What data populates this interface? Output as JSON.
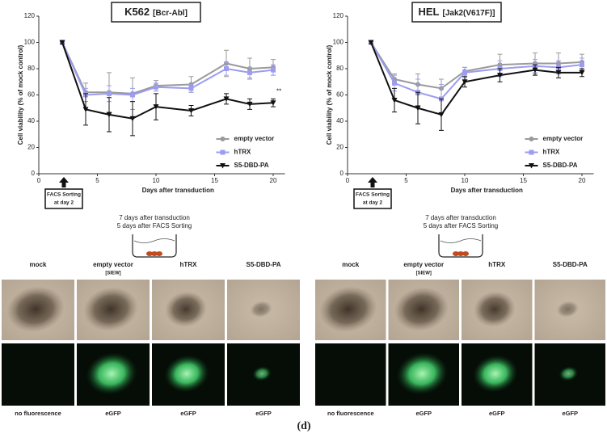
{
  "chart_data": [
    {
      "type": "line",
      "title": "K562",
      "subtitle": "[Bcr-Abl]",
      "x_label": "Days after transduction",
      "y_label": "Cell viability (% of mock control)",
      "x": [
        2,
        4,
        6,
        8,
        10,
        13,
        16,
        18,
        20
      ],
      "xlim": [
        0,
        21
      ],
      "xticks": [
        0,
        5,
        10,
        15,
        20
      ],
      "ylim": [
        0,
        120
      ],
      "yticks": [
        0,
        20,
        40,
        60,
        80,
        100,
        120
      ],
      "legend": "right",
      "annotations": [
        "FACS Sorting",
        "at day 2"
      ],
      "significance": "**",
      "series": [
        {
          "name": "empty vector",
          "color": "#9a9a9a",
          "marker": "circle",
          "values": [
            100,
            62,
            62,
            61,
            67,
            68,
            84,
            80,
            81
          ],
          "errors": [
            1,
            7,
            15,
            12,
            4,
            6,
            10,
            8,
            6
          ]
        },
        {
          "name": "hTRX",
          "color": "#9c9cf0",
          "marker": "square",
          "values": [
            100,
            60,
            61,
            60,
            66,
            65,
            80,
            77,
            79
          ],
          "errors": [
            1,
            5,
            6,
            5,
            3,
            3,
            5,
            4,
            4
          ]
        },
        {
          "name": "S5-DBD-PA",
          "color": "#111111",
          "marker": "triangle",
          "values": [
            100,
            49,
            45,
            42,
            51,
            48,
            57,
            53,
            54
          ],
          "errors": [
            1,
            12,
            13,
            13,
            10,
            4,
            4,
            4,
            3
          ]
        }
      ]
    },
    {
      "type": "line",
      "title": "HEL",
      "subtitle": "[Jak2(V617F)]",
      "x_label": "Days after transduction",
      "y_label": "Cell viability (% of mock control)",
      "x": [
        2,
        4,
        6,
        8,
        10,
        13,
        16,
        18,
        20
      ],
      "xlim": [
        0,
        21
      ],
      "xticks": [
        0,
        5,
        10,
        15,
        20
      ],
      "ylim": [
        0,
        120
      ],
      "yticks": [
        0,
        20,
        40,
        60,
        80,
        100,
        120
      ],
      "legend": "right",
      "annotations": [
        "FACS Sorting",
        "at day 2"
      ],
      "series": [
        {
          "name": "empty vector",
          "color": "#9a9a9a",
          "marker": "circle",
          "values": [
            100,
            72,
            68,
            65,
            78,
            83,
            84,
            84,
            85
          ],
          "errors": [
            1,
            4,
            8,
            7,
            3,
            8,
            8,
            8,
            6
          ]
        },
        {
          "name": "hTRX",
          "color": "#9c9cf0",
          "marker": "square",
          "values": [
            100,
            69,
            62,
            57,
            77,
            80,
            82,
            81,
            83
          ],
          "errors": [
            1,
            6,
            10,
            11,
            4,
            6,
            5,
            5,
            5
          ]
        },
        {
          "name": "S5-DBD-PA",
          "color": "#111111",
          "marker": "triangle",
          "values": [
            100,
            56,
            50,
            45,
            70,
            75,
            79,
            77,
            77
          ],
          "errors": [
            1,
            9,
            12,
            12,
            4,
            5,
            4,
            4,
            3
          ]
        }
      ]
    }
  ],
  "panels": [
    {
      "schematic": [
        "7 days after transduction",
        "5 days after FACS Sorting"
      ],
      "columns": [
        "mock",
        "empty vector",
        "hTRX",
        "S5-DBD-PA"
      ],
      "column_note": "[SIEW]",
      "bottom_labels": [
        "no fluorescence",
        "eGFP",
        "eGFP",
        "eGFP"
      ]
    },
    {
      "schematic": [
        "7 days after transduction",
        "5 days after FACS Sorting"
      ],
      "columns": [
        "mock",
        "empty vector",
        "hTRX",
        "S5-DBD-PA"
      ],
      "column_note": "[SIEW]",
      "bottom_labels": [
        "no fluorescence",
        "eGFP",
        "eGFP",
        "eGFP"
      ]
    }
  ],
  "caption": "(d)"
}
